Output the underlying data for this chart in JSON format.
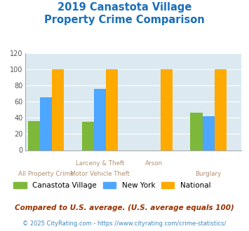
{
  "title": "2019 Canastota Village\nProperty Crime Comparison",
  "cat_labels_line1": [
    "",
    "Larceny & Theft",
    "Arson",
    ""
  ],
  "cat_labels_line2": [
    "All Property Crime",
    "Motor Vehicle Theft",
    "",
    "Burglary"
  ],
  "canastota": [
    36,
    35,
    0,
    46
  ],
  "new_york": [
    65,
    76,
    0,
    42
  ],
  "national": [
    100,
    100,
    100,
    100
  ],
  "colors": {
    "canastota": "#7db83a",
    "new_york": "#4da6ff",
    "national": "#ffaa00"
  },
  "ylim": [
    0,
    120
  ],
  "yticks": [
    0,
    20,
    40,
    60,
    80,
    100,
    120
  ],
  "title_color": "#1a6fba",
  "axis_bg_color": "#dce9f0",
  "fig_bg_color": "#ffffff",
  "xlabel_color": "#b09070",
  "legend_labels": [
    "Canastota Village",
    "New York",
    "National"
  ],
  "footnote1": "Compared to U.S. average. (U.S. average equals 100)",
  "footnote2": "© 2025 CityRating.com - https://www.cityrating.com/crime-statistics/",
  "footnote1_color": "#993300",
  "footnote2_color": "#4488bb",
  "title_fontsize": 10.5,
  "tick_fontsize": 7,
  "legend_fontsize": 7.5,
  "footnote1_fontsize": 7.5,
  "footnote2_fontsize": 6
}
